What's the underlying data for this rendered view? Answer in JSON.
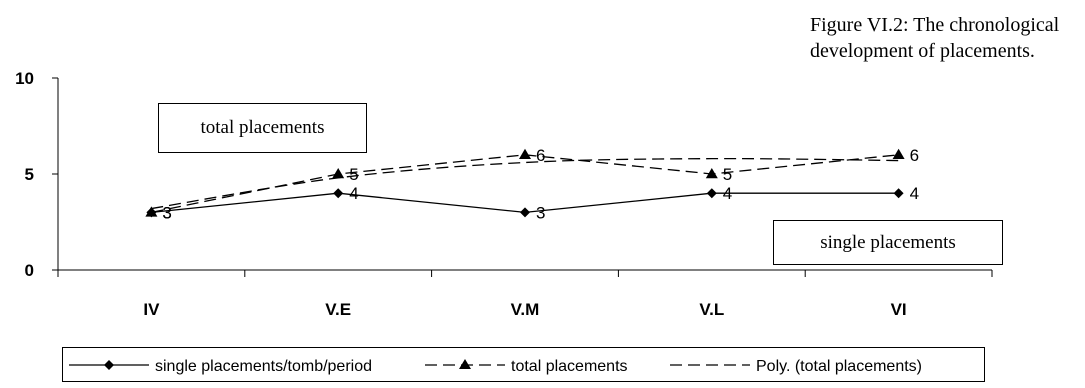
{
  "caption": {
    "line1": "Figure VI.2: The chronological",
    "line2": "development of placements."
  },
  "annotations": {
    "total_box": "total placements",
    "single_box": "single placements"
  },
  "chart_data": {
    "type": "line",
    "title": "Figure VI.2: The chronological development of placements.",
    "categories": [
      "IV",
      "V.E",
      "V.M",
      "V.L",
      "VI"
    ],
    "ylim": [
      0,
      10
    ],
    "yticks": [
      0,
      5,
      10
    ],
    "grid": false,
    "legend_position": "bottom",
    "series": [
      {
        "name": "single placements/tomb/period",
        "values": [
          3,
          4,
          3,
          4,
          4
        ],
        "marker": "diamond",
        "line_style": "solid",
        "color": "#000000",
        "labels": [
          "3",
          "4",
          "3",
          "4",
          "4"
        ]
      },
      {
        "name": "total placements",
        "values": [
          3,
          5,
          6,
          5,
          6
        ],
        "marker": "triangle",
        "line_style": "dashed",
        "color": "#000000",
        "labels": [
          "3",
          "5",
          "6",
          "5",
          "6"
        ]
      },
      {
        "name": "Poly. (total placements)",
        "values": [
          3.2,
          4.8,
          5.6,
          5.8,
          5.7
        ],
        "marker": "none",
        "line_style": "dashed",
        "color": "#000000",
        "labels": []
      }
    ]
  }
}
